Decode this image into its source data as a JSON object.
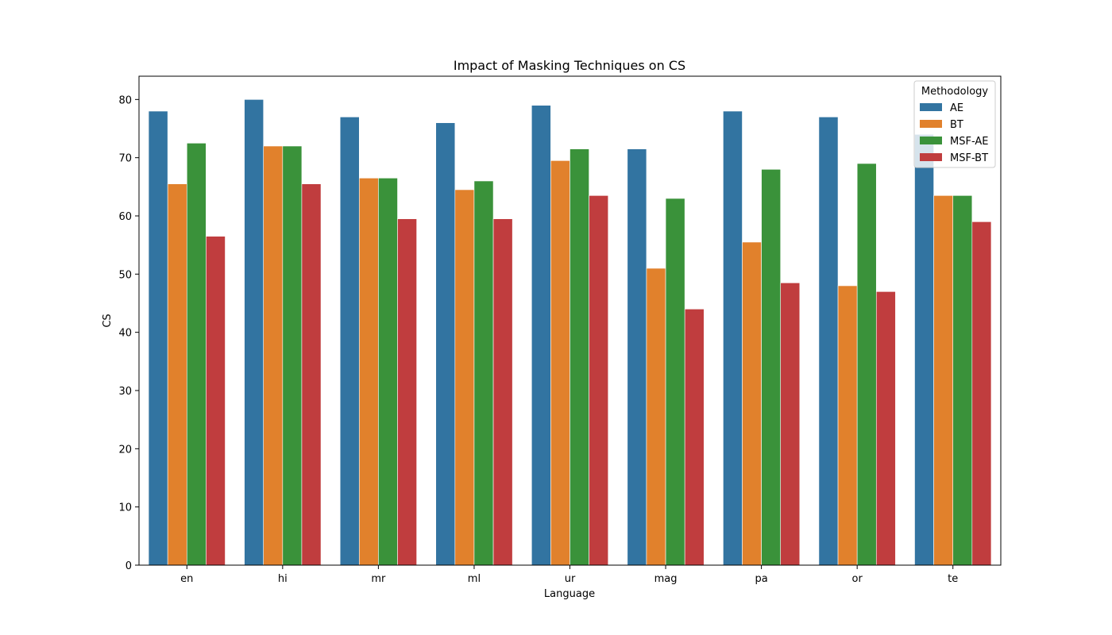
{
  "chart_data": {
    "type": "bar",
    "title": "Impact of Masking Techniques on CS",
    "xlabel": "Language",
    "ylabel": "CS",
    "categories": [
      "en",
      "hi",
      "mr",
      "ml",
      "ur",
      "mag",
      "pa",
      "or",
      "te"
    ],
    "ylim": [
      0,
      84
    ],
    "yticks": [
      0,
      10,
      20,
      30,
      40,
      50,
      60,
      70,
      80
    ],
    "grid": false,
    "legend": {
      "title": "Methodology",
      "placement": "top-right"
    },
    "series": [
      {
        "name": "AE",
        "color": "#3274a1",
        "values": [
          78,
          80,
          77,
          76,
          79,
          71.5,
          78,
          77,
          74
        ]
      },
      {
        "name": "BT",
        "color": "#e1812c",
        "values": [
          65.5,
          72,
          66.5,
          64.5,
          69.5,
          51,
          55.5,
          48,
          63.5
        ]
      },
      {
        "name": "MSF-AE",
        "color": "#3a923a",
        "values": [
          72.5,
          72,
          66.5,
          66,
          71.5,
          63,
          68,
          69,
          63.5
        ]
      },
      {
        "name": "MSF-BT",
        "color": "#c03d3e",
        "values": [
          56.5,
          65.5,
          59.5,
          59.5,
          63.5,
          44,
          48.5,
          47,
          59
        ]
      }
    ]
  }
}
